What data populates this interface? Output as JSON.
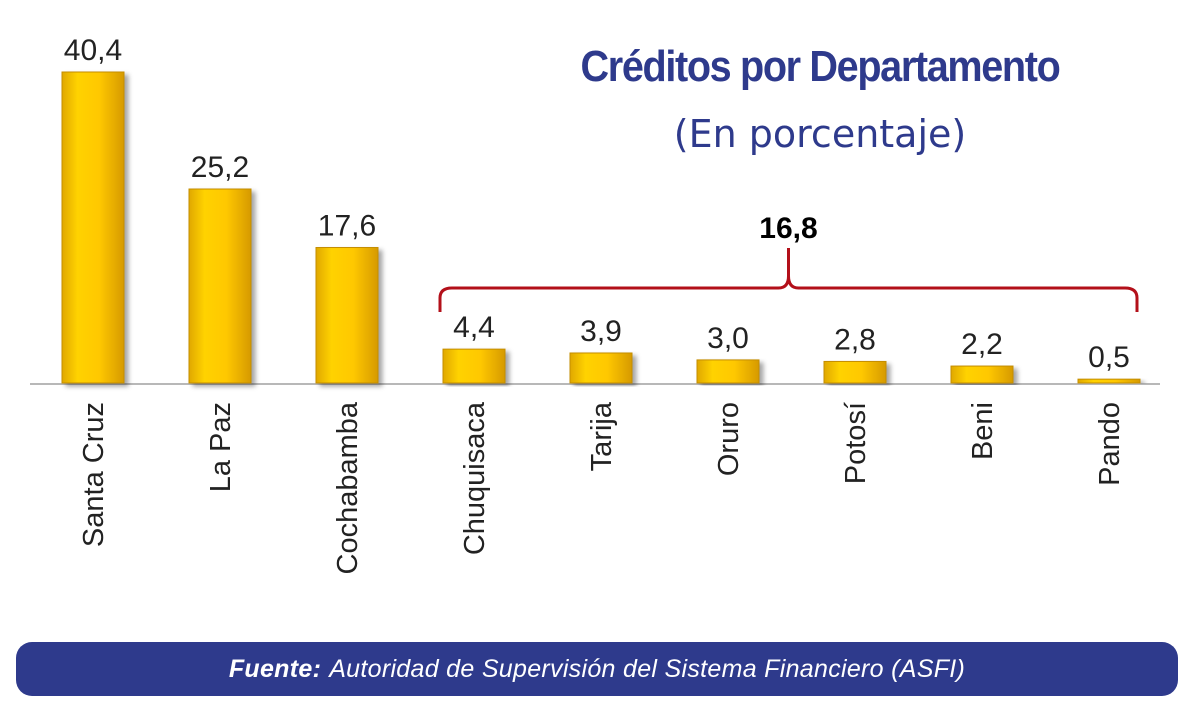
{
  "title": "Créditos por Departamento",
  "subtitle": "(En porcentaje)",
  "source": {
    "label": "Fuente:",
    "text": "Autoridad de Supervisión del Sistema Financiero (ASFI)"
  },
  "colors": {
    "bar": "#ffc800",
    "title": "#2e3a8c",
    "bracket": "#b3101a",
    "source_bg": "#2e3a8c"
  },
  "chart_data": {
    "type": "bar",
    "categories": [
      "Santa Cruz",
      "La Paz",
      "Cochabamba",
      "Chuquisaca",
      "Tarija",
      "Oruro",
      "Potosí",
      "Beni",
      "Pando"
    ],
    "values": [
      40.4,
      25.2,
      17.6,
      4.4,
      3.9,
      3.0,
      2.8,
      2.2,
      0.5
    ],
    "value_labels": [
      "40,4",
      "25,2",
      "17,6",
      "4,4",
      "3,9",
      "3,0",
      "2,8",
      "2,2",
      "0,5"
    ],
    "title": "Créditos por Departamento",
    "subtitle": "(En porcentaje)",
    "xlabel": "",
    "ylabel": "",
    "ylim": [
      0,
      40.4
    ],
    "grid": false,
    "legend": "none",
    "annotation": {
      "text": "16,8",
      "spans": [
        "Chuquisaca",
        "Pando"
      ]
    }
  }
}
